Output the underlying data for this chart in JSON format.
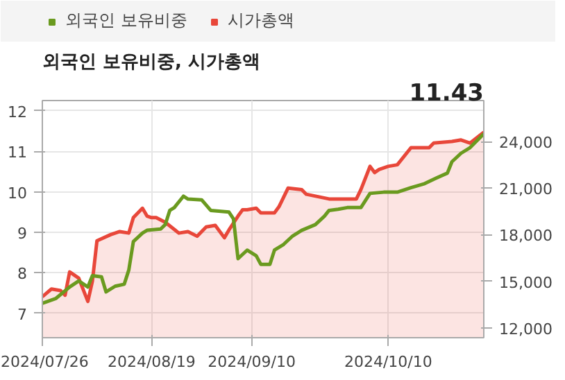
{
  "chart_data": {
    "type": "line",
    "title": "외국인 보유비중, 시가총액",
    "annotations": [
      "11.43"
    ],
    "xlim": [
      "2024-07-26",
      "2024-10-31"
    ],
    "xticks": [
      {
        "value": "2024-07-26",
        "label": "2024/07/26"
      },
      {
        "value": "2024-08-19",
        "label": "2024/08/19"
      },
      {
        "value": "2024-09-10",
        "label": "2024/09/10"
      },
      {
        "value": "2024-10-10",
        "label": "2024/10/10"
      }
    ],
    "ylim": [
      6.4,
      12.25
    ],
    "yticks": [
      7,
      8,
      9,
      10,
      11,
      12
    ],
    "y2lim": [
      11363,
      26637
    ],
    "y2ticks": [
      {
        "value": 12000,
        "label": "12,000"
      },
      {
        "value": 15000,
        "label": "15,000"
      },
      {
        "value": 18000,
        "label": "18,000"
      },
      {
        "value": 21000,
        "label": "21,000"
      },
      {
        "value": 24000,
        "label": "24,000"
      }
    ],
    "grid": true,
    "legend": "top",
    "series": [
      {
        "name": "시가총액",
        "type": "area",
        "axis": "y2",
        "color": "#e8473a",
        "x": [
          "2024-07-26",
          "2024-07-28",
          "2024-07-30",
          "2024-07-31",
          "2024-08-01",
          "2024-08-03",
          "2024-08-05",
          "2024-08-06",
          "2024-08-07",
          "2024-08-10",
          "2024-08-12",
          "2024-08-14",
          "2024-08-15",
          "2024-08-17",
          "2024-08-18",
          "2024-08-19",
          "2024-08-20",
          "2024-08-22",
          "2024-08-25",
          "2024-08-27",
          "2024-08-29",
          "2024-08-31",
          "2024-09-02",
          "2024-09-04",
          "2024-09-05",
          "2024-09-07",
          "2024-09-08",
          "2024-09-09",
          "2024-09-11",
          "2024-09-12",
          "2024-09-15",
          "2024-09-16",
          "2024-09-18",
          "2024-09-21",
          "2024-09-22",
          "2024-09-27",
          "2024-10-03",
          "2024-10-04",
          "2024-10-06",
          "2024-10-07",
          "2024-10-08",
          "2024-10-10",
          "2024-10-12",
          "2024-10-15",
          "2024-10-19",
          "2024-10-20",
          "2024-10-24",
          "2024-10-26",
          "2024-10-28",
          "2024-10-31"
        ],
        "values": [
          14000,
          14500,
          14400,
          14100,
          15600,
          15200,
          13700,
          15000,
          17600,
          18000,
          18200,
          18100,
          19100,
          19700,
          19200,
          19100,
          19100,
          18800,
          18100,
          18200,
          17900,
          18500,
          18600,
          17800,
          18300,
          19200,
          19600,
          19600,
          19700,
          19400,
          19400,
          19800,
          21000,
          20900,
          20600,
          20300,
          20300,
          20900,
          22400,
          22000,
          22200,
          22400,
          22500,
          23600,
          23600,
          23900,
          24000,
          24100,
          23900,
          24600
        ]
      },
      {
        "name": "외국인 보유비중",
        "type": "line",
        "color": "#6a9a1f",
        "x": [
          "2024-07-26",
          "2024-07-29",
          "2024-08-01",
          "2024-08-03",
          "2024-08-05",
          "2024-08-06",
          "2024-08-08",
          "2024-08-09",
          "2024-08-11",
          "2024-08-13",
          "2024-08-14",
          "2024-08-15",
          "2024-08-17",
          "2024-08-18",
          "2024-08-21",
          "2024-08-22",
          "2024-08-23",
          "2024-08-24",
          "2024-08-26",
          "2024-08-27",
          "2024-08-30",
          "2024-09-01",
          "2024-09-05",
          "2024-09-06",
          "2024-09-07",
          "2024-09-09",
          "2024-09-11",
          "2024-09-12",
          "2024-09-14",
          "2024-09-15",
          "2024-09-17",
          "2024-09-19",
          "2024-09-21",
          "2024-09-24",
          "2024-09-26",
          "2024-09-27",
          "2024-09-29",
          "2024-10-01",
          "2024-10-04",
          "2024-10-06",
          "2024-10-09",
          "2024-10-12",
          "2024-10-15",
          "2024-10-18",
          "2024-10-20",
          "2024-10-23",
          "2024-10-24",
          "2024-10-26",
          "2024-10-28",
          "2024-10-31"
        ],
        "values": [
          7.25,
          7.37,
          7.65,
          7.8,
          7.65,
          7.93,
          7.9,
          7.53,
          7.67,
          7.72,
          8.07,
          8.77,
          8.98,
          9.05,
          9.08,
          9.19,
          9.54,
          9.61,
          9.89,
          9.82,
          9.8,
          9.54,
          9.5,
          9.33,
          8.35,
          8.56,
          8.42,
          8.21,
          8.21,
          8.56,
          8.7,
          8.91,
          9.05,
          9.19,
          9.4,
          9.54,
          9.57,
          9.61,
          9.61,
          9.96,
          9.99,
          9.99,
          10.1,
          10.2,
          10.31,
          10.46,
          10.74,
          10.95,
          11.09,
          11.43
        ]
      }
    ]
  }
}
